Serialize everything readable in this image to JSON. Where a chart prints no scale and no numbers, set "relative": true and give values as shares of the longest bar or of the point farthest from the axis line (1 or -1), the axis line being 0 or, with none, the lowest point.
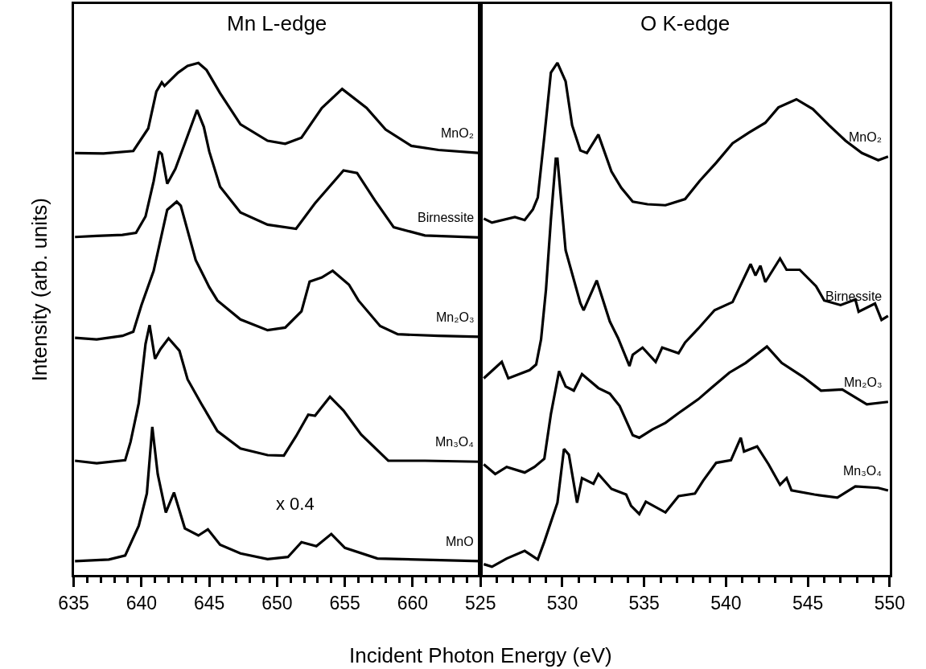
{
  "chart_data": [
    {
      "type": "line",
      "title": "Mn L-edge",
      "xlabel": "Incident Photon Energy (eV)",
      "ylabel": "Intensity (arb. units)",
      "relative": true,
      "tick_labels": "x",
      "grid": false,
      "legend": false,
      "marker": "none",
      "line_style": "solid",
      "xlim": [
        635,
        665
      ],
      "xticks": [
        635,
        {
          "value": 636,
          "label": null
        },
        {
          "value": 637,
          "label": null
        },
        {
          "value": 638,
          "label": null
        },
        {
          "value": 639,
          "label": null
        },
        640,
        {
          "value": 641,
          "label": null
        },
        {
          "value": 642,
          "label": null
        },
        {
          "value": 643,
          "label": null
        },
        {
          "value": 644,
          "label": null
        },
        645,
        {
          "value": 646,
          "label": null
        },
        {
          "value": 647,
          "label": null
        },
        {
          "value": 648,
          "label": null
        },
        {
          "value": 649,
          "label": null
        },
        650,
        {
          "value": 651,
          "label": null
        },
        {
          "value": 652,
          "label": null
        },
        {
          "value": 653,
          "label": null
        },
        {
          "value": 654,
          "label": null
        },
        655,
        {
          "value": 656,
          "label": null
        },
        {
          "value": 657,
          "label": null
        },
        {
          "value": 658,
          "label": null
        },
        {
          "value": 659,
          "label": null
        },
        660,
        {
          "value": 661,
          "label": null
        },
        {
          "value": 662,
          "label": null
        },
        {
          "value": 663,
          "label": null
        },
        {
          "value": 664,
          "label": null
        },
        {
          "value": 665,
          "label": null
        }
      ],
      "annotations": [
        "x 0.4"
      ],
      "series": [
        {
          "name": "MnO₂",
          "color": "#000000",
          "x": [
            635.1,
            637.2,
            639.4,
            640.5,
            641.1,
            641.5,
            641.7,
            642.7,
            643.4,
            644.2,
            644.8,
            645.8,
            647.3,
            649.3,
            650.6,
            651.8,
            653.3,
            654.8,
            656.6,
            658.0,
            659.9,
            661.9,
            665.0
          ],
          "values": [
            0.824,
            0.823,
            0.828,
            0.872,
            0.944,
            0.962,
            0.955,
            0.981,
            0.994,
            1.0,
            0.986,
            0.941,
            0.88,
            0.848,
            0.842,
            0.854,
            0.912,
            0.949,
            0.912,
            0.87,
            0.838,
            0.83,
            0.824
          ]
        },
        {
          "name": "Birnessite",
          "color": "#000000",
          "x": [
            635.1,
            636.7,
            638.6,
            639.6,
            640.3,
            640.9,
            641.3,
            641.5,
            641.9,
            642.5,
            643.2,
            644.1,
            644.6,
            645.0,
            645.8,
            647.3,
            649.3,
            651.4,
            652.8,
            654.9,
            655.9,
            657.2,
            658.6,
            660.9,
            665.0
          ],
          "values": [
            0.66,
            0.662,
            0.664,
            0.668,
            0.7,
            0.769,
            0.827,
            0.822,
            0.764,
            0.793,
            0.843,
            0.908,
            0.875,
            0.827,
            0.758,
            0.708,
            0.684,
            0.676,
            0.726,
            0.79,
            0.785,
            0.732,
            0.679,
            0.663,
            0.659
          ]
        },
        {
          "name": "Mn₂O₃",
          "color": "#000000",
          "x": [
            635.1,
            636.7,
            638.6,
            639.4,
            640.0,
            640.9,
            641.9,
            642.6,
            642.9,
            644.0,
            645.0,
            645.6,
            647.3,
            649.3,
            650.6,
            651.8,
            652.4,
            653.3,
            654.1,
            655.3,
            656.0,
            657.6,
            658.9,
            661.9,
            665.0
          ],
          "values": [
            0.463,
            0.46,
            0.467,
            0.475,
            0.527,
            0.594,
            0.713,
            0.729,
            0.721,
            0.615,
            0.562,
            0.536,
            0.499,
            0.478,
            0.483,
            0.515,
            0.573,
            0.581,
            0.594,
            0.567,
            0.536,
            0.486,
            0.47,
            0.467,
            0.465
          ]
        },
        {
          "name": "Mn₃O₄",
          "color": "#000000",
          "x": [
            635.1,
            636.7,
            638.8,
            639.2,
            639.8,
            640.3,
            640.6,
            641.0,
            641.4,
            642.0,
            642.8,
            643.4,
            644.4,
            645.6,
            647.3,
            649.3,
            650.5,
            651.4,
            652.3,
            652.8,
            653.9,
            654.9,
            656.2,
            658.2,
            660.9,
            665.0
          ],
          "values": [
            0.223,
            0.218,
            0.224,
            0.26,
            0.335,
            0.451,
            0.488,
            0.422,
            0.441,
            0.462,
            0.438,
            0.382,
            0.335,
            0.281,
            0.247,
            0.234,
            0.233,
            0.271,
            0.313,
            0.311,
            0.348,
            0.321,
            0.274,
            0.223,
            0.223,
            0.221
          ]
        },
        {
          "name": "MnO",
          "color": "#000000",
          "x": [
            635.1,
            637.6,
            638.8,
            639.8,
            640.4,
            640.8,
            641.2,
            641.8,
            642.4,
            643.2,
            644.2,
            644.9,
            645.8,
            647.3,
            649.3,
            650.8,
            651.8,
            652.9,
            654.0,
            655.0,
            657.4,
            665.0
          ],
          "values": [
            0.027,
            0.03,
            0.038,
            0.096,
            0.159,
            0.289,
            0.197,
            0.122,
            0.161,
            0.091,
            0.077,
            0.089,
            0.059,
            0.042,
            0.031,
            0.035,
            0.064,
            0.056,
            0.08,
            0.053,
            0.032,
            0.027
          ]
        }
      ]
    },
    {
      "type": "line",
      "title": "O K-edge",
      "relative": true,
      "tick_labels": "x",
      "grid": false,
      "legend": false,
      "marker": "none",
      "line_style": "solid",
      "xlim": [
        525,
        550
      ],
      "xticks": [
        525,
        {
          "value": 526,
          "label": null
        },
        {
          "value": 527,
          "label": null
        },
        {
          "value": 528,
          "label": null
        },
        {
          "value": 529,
          "label": null
        },
        530,
        {
          "value": 531,
          "label": null
        },
        {
          "value": 532,
          "label": null
        },
        {
          "value": 533,
          "label": null
        },
        {
          "value": 534,
          "label": null
        },
        535,
        {
          "value": 536,
          "label": null
        },
        {
          "value": 537,
          "label": null
        },
        {
          "value": 538,
          "label": null
        },
        {
          "value": 539,
          "label": null
        },
        540,
        {
          "value": 541,
          "label": null
        },
        {
          "value": 542,
          "label": null
        },
        {
          "value": 543,
          "label": null
        },
        {
          "value": 544,
          "label": null
        },
        545,
        {
          "value": 546,
          "label": null
        },
        {
          "value": 547,
          "label": null
        },
        {
          "value": 548,
          "label": null
        },
        {
          "value": 549,
          "label": null
        },
        550
      ],
      "series": [
        {
          "name": "MnO₂",
          "color": "#000000",
          "x": [
            525.2,
            525.7,
            527.1,
            527.7,
            528.2,
            528.5,
            528.9,
            529.3,
            529.7,
            530.2,
            530.6,
            531.1,
            531.5,
            532.2,
            533.0,
            533.6,
            534.3,
            535.2,
            536.3,
            537.5,
            538.4,
            539.4,
            540.4,
            541.4,
            542.4,
            543.2,
            544.3,
            545.3,
            546.3,
            547.3,
            548.3,
            549.3,
            549.9
          ],
          "values": [
            0.696,
            0.688,
            0.699,
            0.693,
            0.714,
            0.737,
            0.856,
            0.981,
            1.0,
            0.964,
            0.878,
            0.829,
            0.824,
            0.86,
            0.788,
            0.756,
            0.729,
            0.724,
            0.722,
            0.734,
            0.77,
            0.805,
            0.843,
            0.864,
            0.883,
            0.913,
            0.929,
            0.91,
            0.878,
            0.848,
            0.824,
            0.81,
            0.817
          ]
        },
        {
          "name": "Birnessite",
          "color": "#000000",
          "x": [
            525.2,
            526.3,
            526.7,
            528.0,
            528.4,
            528.7,
            529.0,
            529.3,
            529.6,
            529.7,
            530.2,
            531.1,
            531.3,
            532.1,
            532.9,
            533.4,
            534.1,
            534.3,
            534.9,
            535.7,
            536.1,
            537.1,
            537.5,
            538.3,
            539.3,
            540.4,
            541.5,
            541.8,
            542.1,
            542.4,
            543.3,
            543.7,
            544.5,
            545.5,
            546.0,
            547.0,
            547.9,
            548.1,
            549.1,
            549.5,
            549.9
          ],
          "values": [
            0.384,
            0.416,
            0.384,
            0.4,
            0.411,
            0.46,
            0.557,
            0.694,
            0.813,
            0.813,
            0.634,
            0.531,
            0.517,
            0.575,
            0.495,
            0.463,
            0.408,
            0.43,
            0.444,
            0.416,
            0.444,
            0.433,
            0.454,
            0.481,
            0.517,
            0.533,
            0.607,
            0.585,
            0.604,
            0.572,
            0.618,
            0.596,
            0.596,
            0.564,
            0.536,
            0.527,
            0.538,
            0.514,
            0.53,
            0.498,
            0.506
          ]
        },
        {
          "name": "Mn₂O₃",
          "color": "#000000",
          "x": [
            525.2,
            525.9,
            526.6,
            527.7,
            528.3,
            528.9,
            529.3,
            529.8,
            530.2,
            530.7,
            531.2,
            532.2,
            532.9,
            533.5,
            534.3,
            534.7,
            535.5,
            536.3,
            537.1,
            538.3,
            539.1,
            540.2,
            541.2,
            542.5,
            543.4,
            544.7,
            545.8,
            547.1,
            548.6,
            549.9
          ],
          "values": [
            0.216,
            0.197,
            0.211,
            0.2,
            0.211,
            0.227,
            0.314,
            0.398,
            0.368,
            0.36,
            0.392,
            0.365,
            0.354,
            0.33,
            0.273,
            0.268,
            0.284,
            0.297,
            0.316,
            0.343,
            0.365,
            0.395,
            0.414,
            0.446,
            0.414,
            0.387,
            0.36,
            0.362,
            0.333,
            0.338
          ]
        },
        {
          "name": "Mn₃O₄",
          "color": "#000000",
          "x": [
            525.2,
            525.7,
            526.6,
            527.7,
            528.5,
            528.9,
            529.7,
            530.1,
            530.4,
            530.9,
            531.2,
            531.9,
            532.2,
            533.0,
            533.9,
            534.2,
            534.7,
            535.1,
            536.3,
            537.1,
            538.1,
            538.6,
            539.4,
            540.3,
            540.9,
            541.1,
            541.9,
            542.6,
            543.3,
            543.7,
            544.0,
            545.4,
            546.8,
            547.9,
            549.3,
            549.9
          ],
          "values": [
            0.021,
            0.016,
            0.032,
            0.047,
            0.03,
            0.065,
            0.141,
            0.246,
            0.235,
            0.141,
            0.189,
            0.178,
            0.197,
            0.168,
            0.157,
            0.135,
            0.119,
            0.143,
            0.122,
            0.154,
            0.159,
            0.184,
            0.219,
            0.224,
            0.268,
            0.241,
            0.251,
            0.216,
            0.176,
            0.189,
            0.165,
            0.157,
            0.151,
            0.173,
            0.17,
            0.165
          ]
        }
      ]
    }
  ]
}
